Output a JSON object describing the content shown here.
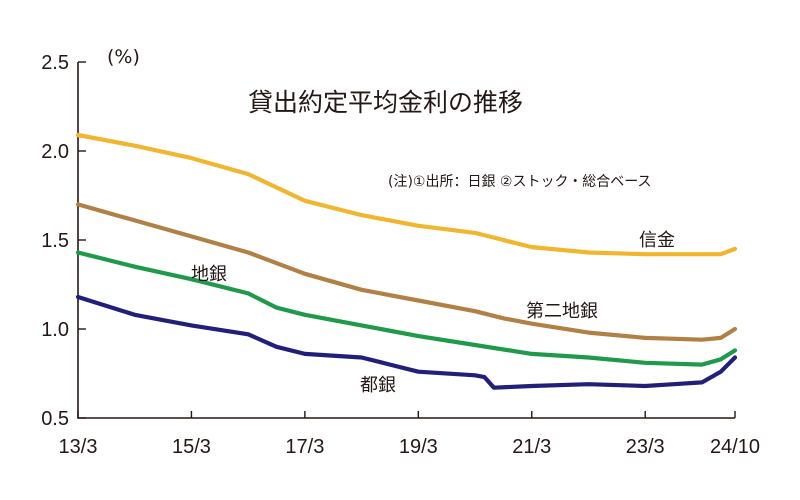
{
  "chart_data": {
    "type": "line",
    "title": "貸出約定平均金利の推移",
    "note": "(注)①出所：日銀 ②ストック・総合ベース",
    "y_unit": "(%)",
    "ylim": [
      0.5,
      2.5
    ],
    "yticks": [
      "2.5",
      "2.0",
      "1.5",
      "1.0",
      "0.5"
    ],
    "x_start": "2013-03",
    "x_end": "2024-10",
    "xticks": [
      {
        "label": "13/3",
        "date": "2013-03"
      },
      {
        "label": "15/3",
        "date": "2015-03"
      },
      {
        "label": "17/3",
        "date": "2017-03"
      },
      {
        "label": "19/3",
        "date": "2019-03"
      },
      {
        "label": "21/3",
        "date": "2021-03"
      },
      {
        "label": "23/3",
        "date": "2023-03"
      },
      {
        "label": "24/10",
        "date": "2024-10"
      }
    ],
    "grid": false,
    "legend": "inline labels",
    "series": [
      {
        "name": "信金",
        "color": "#f0b62f",
        "points": [
          [
            "2013-03",
            2.09
          ],
          [
            "2014-03",
            2.03
          ],
          [
            "2015-03",
            1.96
          ],
          [
            "2016-03",
            1.87
          ],
          [
            "2017-03",
            1.72
          ],
          [
            "2018-03",
            1.64
          ],
          [
            "2019-03",
            1.58
          ],
          [
            "2019-09",
            1.56
          ],
          [
            "2020-03",
            1.54
          ],
          [
            "2020-09",
            1.5
          ],
          [
            "2021-03",
            1.46
          ],
          [
            "2022-03",
            1.43
          ],
          [
            "2023-03",
            1.42
          ],
          [
            "2024-03",
            1.42
          ],
          [
            "2024-07",
            1.42
          ],
          [
            "2024-10",
            1.45
          ]
        ]
      },
      {
        "name": "第二地銀",
        "color": "#b08045",
        "points": [
          [
            "2013-03",
            1.7
          ],
          [
            "2014-03",
            1.61
          ],
          [
            "2015-03",
            1.52
          ],
          [
            "2016-03",
            1.43
          ],
          [
            "2017-03",
            1.31
          ],
          [
            "2018-03",
            1.22
          ],
          [
            "2019-03",
            1.16
          ],
          [
            "2020-03",
            1.1
          ],
          [
            "2020-09",
            1.06
          ],
          [
            "2021-03",
            1.03
          ],
          [
            "2022-03",
            0.98
          ],
          [
            "2023-03",
            0.95
          ],
          [
            "2024-03",
            0.94
          ],
          [
            "2024-07",
            0.95
          ],
          [
            "2024-10",
            1.0
          ]
        ]
      },
      {
        "name": "地銀",
        "color": "#1f9a4a",
        "points": [
          [
            "2013-03",
            1.43
          ],
          [
            "2014-03",
            1.35
          ],
          [
            "2015-03",
            1.28
          ],
          [
            "2016-03",
            1.2
          ],
          [
            "2016-09",
            1.12
          ],
          [
            "2017-03",
            1.08
          ],
          [
            "2018-03",
            1.02
          ],
          [
            "2019-03",
            0.96
          ],
          [
            "2020-03",
            0.91
          ],
          [
            "2021-03",
            0.86
          ],
          [
            "2022-03",
            0.84
          ],
          [
            "2023-03",
            0.81
          ],
          [
            "2024-03",
            0.8
          ],
          [
            "2024-07",
            0.83
          ],
          [
            "2024-10",
            0.88
          ]
        ]
      },
      {
        "name": "都銀",
        "color": "#221f7a",
        "points": [
          [
            "2013-03",
            1.18
          ],
          [
            "2014-03",
            1.08
          ],
          [
            "2015-03",
            1.02
          ],
          [
            "2016-03",
            0.97
          ],
          [
            "2016-09",
            0.9
          ],
          [
            "2017-03",
            0.86
          ],
          [
            "2018-03",
            0.84
          ],
          [
            "2018-09",
            0.8
          ],
          [
            "2019-03",
            0.76
          ],
          [
            "2020-03",
            0.74
          ],
          [
            "2020-05",
            0.73
          ],
          [
            "2020-07",
            0.67
          ],
          [
            "2021-03",
            0.68
          ],
          [
            "2022-03",
            0.69
          ],
          [
            "2023-03",
            0.68
          ],
          [
            "2023-09",
            0.69
          ],
          [
            "2024-03",
            0.7
          ],
          [
            "2024-07",
            0.76
          ],
          [
            "2024-10",
            0.84
          ]
        ]
      }
    ],
    "labels": [
      "信金",
      "第二地銀",
      "地銀",
      "都銀"
    ]
  }
}
